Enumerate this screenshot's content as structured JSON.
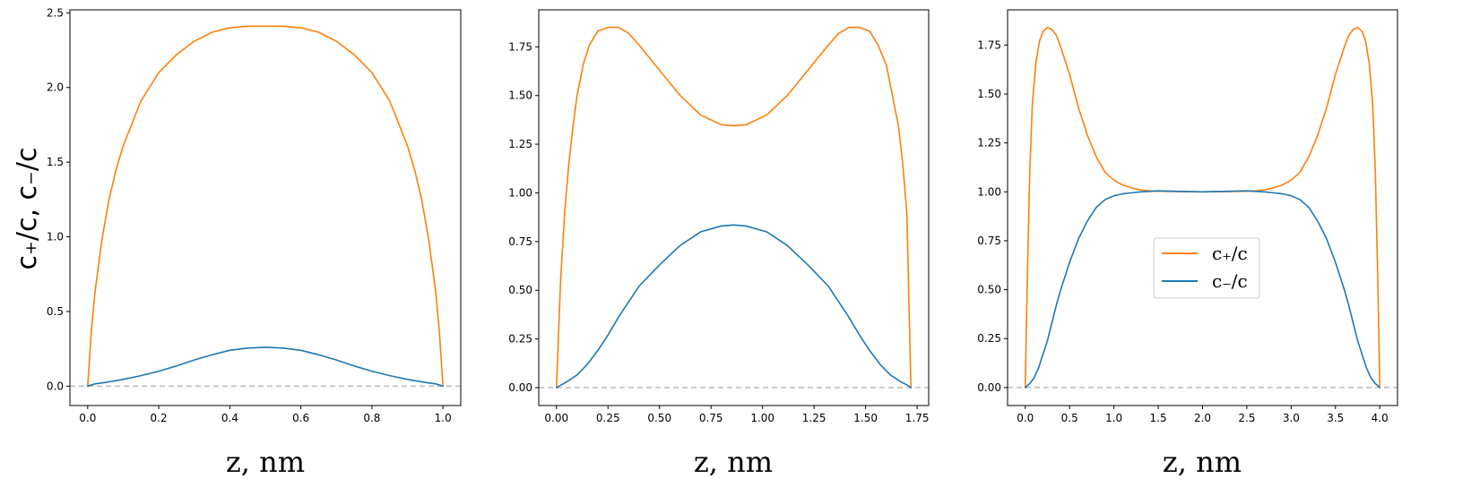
{
  "colors": {
    "cplus": "#ff7f0e",
    "cminus": "#1f77b4",
    "zero_line": "#bbbbbb"
  },
  "chart_data": [
    {
      "type": "line",
      "xlabel": "z, nm",
      "ylabel": "c₊/c, c₋/c",
      "xlim": [
        -0.05,
        1.05
      ],
      "ylim": [
        -0.13,
        2.52
      ],
      "xticks": [
        0.0,
        0.2,
        0.4,
        0.6,
        0.8,
        1.0
      ],
      "xtick_labels": [
        "0.0",
        "0.2",
        "0.4",
        "0.6",
        "0.8",
        "1.0"
      ],
      "yticks": [
        0.0,
        0.5,
        1.0,
        1.5,
        2.0,
        2.5
      ],
      "ytick_labels": [
        "0.0",
        "0.5",
        "1.0",
        "1.5",
        "2.0",
        "2.5"
      ],
      "zero_line": true,
      "series": [
        {
          "key": "cplus",
          "x": [
            0,
            0.01,
            0.02,
            0.04,
            0.06,
            0.08,
            0.1,
            0.15,
            0.2,
            0.25,
            0.3,
            0.35,
            0.4,
            0.45,
            0.5,
            0.55,
            0.6,
            0.65,
            0.7,
            0.75,
            0.8,
            0.85,
            0.9,
            0.92,
            0.94,
            0.96,
            0.98,
            0.99,
            1.0
          ],
          "y": [
            0.0,
            0.36,
            0.62,
            0.98,
            1.25,
            1.45,
            1.61,
            1.91,
            2.1,
            2.22,
            2.31,
            2.37,
            2.4,
            2.41,
            2.41,
            2.41,
            2.4,
            2.37,
            2.31,
            2.22,
            2.1,
            1.91,
            1.61,
            1.45,
            1.25,
            0.98,
            0.62,
            0.36,
            0.0
          ]
        },
        {
          "key": "cminus",
          "x": [
            0,
            0.02,
            0.05,
            0.1,
            0.15,
            0.2,
            0.25,
            0.3,
            0.35,
            0.4,
            0.45,
            0.5,
            0.55,
            0.6,
            0.65,
            0.7,
            0.75,
            0.8,
            0.85,
            0.9,
            0.95,
            0.98,
            1.0
          ],
          "y": [
            0.0,
            0.015,
            0.025,
            0.045,
            0.07,
            0.1,
            0.135,
            0.175,
            0.21,
            0.24,
            0.255,
            0.26,
            0.255,
            0.24,
            0.21,
            0.175,
            0.135,
            0.1,
            0.07,
            0.045,
            0.025,
            0.015,
            0.0
          ]
        }
      ]
    },
    {
      "type": "line",
      "xlabel": "z, nm",
      "ylabel": "",
      "xlim": [
        -0.086,
        1.806
      ],
      "ylim": [
        -0.092,
        1.94
      ],
      "xticks": [
        0.0,
        0.25,
        0.5,
        0.75,
        1.0,
        1.25,
        1.5,
        1.75
      ],
      "xtick_labels": [
        "0.00",
        "0.25",
        "0.50",
        "0.75",
        "1.00",
        "1.25",
        "1.50",
        "1.75"
      ],
      "yticks": [
        0.0,
        0.25,
        0.5,
        0.75,
        1.0,
        1.25,
        1.5,
        1.75
      ],
      "ytick_labels": [
        "0.00",
        "0.25",
        "0.50",
        "0.75",
        "1.00",
        "1.25",
        "1.50",
        "1.75"
      ],
      "zero_line": true,
      "series": [
        {
          "key": "cplus",
          "x": [
            0,
            0.02,
            0.04,
            0.06,
            0.08,
            0.1,
            0.13,
            0.16,
            0.2,
            0.25,
            0.3,
            0.35,
            0.4,
            0.5,
            0.6,
            0.7,
            0.8,
            0.86,
            0.92,
            1.02,
            1.12,
            1.22,
            1.32,
            1.37,
            1.42,
            1.47,
            1.52,
            1.56,
            1.6,
            1.63,
            1.66,
            1.68,
            1.7,
            1.72
          ],
          "y": [
            0.0,
            0.55,
            0.9,
            1.15,
            1.34,
            1.5,
            1.66,
            1.76,
            1.83,
            1.85,
            1.85,
            1.82,
            1.76,
            1.63,
            1.5,
            1.4,
            1.35,
            1.345,
            1.35,
            1.4,
            1.5,
            1.63,
            1.76,
            1.82,
            1.85,
            1.85,
            1.83,
            1.76,
            1.66,
            1.5,
            1.34,
            1.15,
            0.9,
            0.0
          ]
        },
        {
          "key": "cminus",
          "x": [
            0,
            0.05,
            0.1,
            0.15,
            0.2,
            0.25,
            0.3,
            0.35,
            0.4,
            0.5,
            0.6,
            0.7,
            0.8,
            0.86,
            0.92,
            1.02,
            1.12,
            1.22,
            1.32,
            1.37,
            1.42,
            1.47,
            1.52,
            1.57,
            1.62,
            1.67,
            1.7,
            1.72
          ],
          "y": [
            0.0,
            0.03,
            0.065,
            0.12,
            0.19,
            0.27,
            0.36,
            0.44,
            0.52,
            0.63,
            0.73,
            0.8,
            0.83,
            0.835,
            0.83,
            0.8,
            0.73,
            0.63,
            0.52,
            0.44,
            0.36,
            0.27,
            0.19,
            0.12,
            0.065,
            0.03,
            0.015,
            0.0
          ]
        }
      ]
    },
    {
      "type": "line",
      "xlabel": "z, nm",
      "ylabel": "",
      "xlim": [
        -0.2,
        4.2
      ],
      "ylim": [
        -0.092,
        1.93
      ],
      "xticks": [
        0.0,
        0.5,
        1.0,
        1.5,
        2.0,
        2.5,
        3.0,
        3.5,
        4.0
      ],
      "xtick_labels": [
        "0.0",
        "0.5",
        "1.0",
        "1.5",
        "2.0",
        "2.5",
        "3.0",
        "3.5",
        "4.0"
      ],
      "yticks": [
        0.0,
        0.25,
        0.5,
        0.75,
        1.0,
        1.25,
        1.5,
        1.75
      ],
      "ytick_labels": [
        "0.00",
        "0.25",
        "0.50",
        "0.75",
        "1.00",
        "1.25",
        "1.50",
        "1.75"
      ],
      "zero_line": true,
      "legend": {
        "placement": "center-right"
      },
      "series": [
        {
          "key": "cplus",
          "name": "c₊/c",
          "x": [
            0,
            0.02,
            0.05,
            0.08,
            0.12,
            0.16,
            0.2,
            0.25,
            0.3,
            0.35,
            0.4,
            0.5,
            0.6,
            0.7,
            0.8,
            0.9,
            1.0,
            1.1,
            1.2,
            1.3,
            1.4,
            1.6,
            2.0,
            2.4,
            2.6,
            2.7,
            2.8,
            2.9,
            3.0,
            3.1,
            3.2,
            3.3,
            3.4,
            3.5,
            3.6,
            3.65,
            3.7,
            3.75,
            3.8,
            3.84,
            3.88,
            3.92,
            3.95,
            3.98,
            4.0
          ],
          "y": [
            0.0,
            0.5,
            1.1,
            1.45,
            1.66,
            1.77,
            1.82,
            1.84,
            1.83,
            1.8,
            1.74,
            1.6,
            1.43,
            1.29,
            1.18,
            1.1,
            1.06,
            1.035,
            1.02,
            1.01,
            1.005,
            1.002,
            1.0,
            1.002,
            1.005,
            1.01,
            1.02,
            1.035,
            1.06,
            1.1,
            1.18,
            1.29,
            1.43,
            1.6,
            1.74,
            1.8,
            1.83,
            1.84,
            1.82,
            1.77,
            1.66,
            1.45,
            1.1,
            0.5,
            0.0
          ]
        },
        {
          "key": "cminus",
          "name": "c₋/c",
          "x": [
            0,
            0.05,
            0.1,
            0.15,
            0.2,
            0.25,
            0.3,
            0.35,
            0.4,
            0.5,
            0.6,
            0.7,
            0.8,
            0.9,
            1.0,
            1.1,
            1.2,
            1.3,
            1.5,
            2.0,
            2.5,
            2.7,
            2.8,
            2.9,
            3.0,
            3.1,
            3.2,
            3.3,
            3.4,
            3.5,
            3.6,
            3.65,
            3.7,
            3.75,
            3.8,
            3.85,
            3.9,
            3.95,
            4.0
          ],
          "y": [
            0.0,
            0.02,
            0.05,
            0.1,
            0.17,
            0.24,
            0.33,
            0.42,
            0.5,
            0.64,
            0.76,
            0.85,
            0.92,
            0.96,
            0.98,
            0.99,
            0.995,
            1.0,
            1.005,
            1.0,
            1.005,
            1.0,
            0.995,
            0.99,
            0.98,
            0.96,
            0.92,
            0.85,
            0.76,
            0.64,
            0.5,
            0.42,
            0.33,
            0.24,
            0.17,
            0.1,
            0.05,
            0.02,
            0.0
          ]
        }
      ]
    }
  ]
}
